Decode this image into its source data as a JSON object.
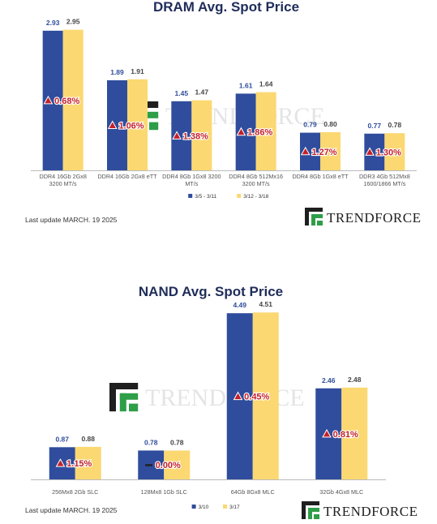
{
  "colors": {
    "series_a": "#2f4d9c",
    "series_b": "#fbd871",
    "title": "#1f2d5a",
    "increase": "#c4202a"
  },
  "watermark": "TRENDFORCE",
  "brand": {
    "logo": "TRENDFORCE"
  },
  "chart_data": [
    {
      "type": "bar",
      "title": "DRAM Avg. Spot Price",
      "categories": [
        [
          "DDR4 16Gb 2Gx8",
          "3200 MT/s"
        ],
        [
          "DDR4 16Gb 2Gx8 eTT"
        ],
        [
          "DDR4 8Gb 1Gx8 3200",
          "MT/s"
        ],
        [
          "DDR4 8Gb 512Mx16",
          "3200 MT/s"
        ],
        [
          "DDR4 8Gb 1Gx8 eTT"
        ],
        [
          "DDR3 4Gb 512Mx8",
          "1600/1866 MT/s"
        ]
      ],
      "series": [
        {
          "name": "3/5 - 3/11",
          "values": [
            2.93,
            1.89,
            1.45,
            1.61,
            0.79,
            0.77
          ]
        },
        {
          "name": "3/12 - 3/18",
          "values": [
            2.95,
            1.91,
            1.47,
            1.64,
            0.8,
            0.78
          ]
        }
      ],
      "value_labels": [
        [
          "2.93",
          "1.89",
          "1.45",
          "1.61",
          "0.79",
          "0.77"
        ],
        [
          "2.95",
          "1.91",
          "1.47",
          "1.64",
          "0.80",
          "0.78"
        ]
      ],
      "changes": [
        {
          "direction": "up",
          "text": "0.68%"
        },
        {
          "direction": "up",
          "text": "1.06%"
        },
        {
          "direction": "up",
          "text": "1.38%"
        },
        {
          "direction": "up",
          "text": "1.86%"
        },
        {
          "direction": "up",
          "text": "1.27%"
        },
        {
          "direction": "up",
          "text": "1.30%"
        }
      ],
      "ylim": [
        0,
        3.2
      ],
      "legend_position": "bottom-center",
      "last_update": "Last update MARCH. 19  2025"
    },
    {
      "type": "bar",
      "title": "NAND Avg. Spot Price",
      "categories": [
        [
          "256Mx8 2Gb SLC"
        ],
        [
          "128Mx8 1Gb SLC"
        ],
        [
          "64Gb 8Gx8 MLC"
        ],
        [
          "32Gb 4Gx8 MLC"
        ]
      ],
      "series": [
        {
          "name": "3/10",
          "values": [
            0.87,
            0.78,
            4.49,
            2.46
          ]
        },
        {
          "name": "3/17",
          "values": [
            0.88,
            0.78,
            4.51,
            2.48
          ]
        }
      ],
      "value_labels": [
        [
          "0.87",
          "0.78",
          "4.49",
          "2.46"
        ],
        [
          "0.88",
          "0.78",
          "4.51",
          "2.48"
        ]
      ],
      "changes": [
        {
          "direction": "up",
          "text": "1.15%"
        },
        {
          "direction": "flat",
          "text": "0.00%"
        },
        {
          "direction": "up",
          "text": "0.45%"
        },
        {
          "direction": "up",
          "text": "0.81%"
        }
      ],
      "ylim": [
        0,
        4.8
      ],
      "legend_position": "bottom-center",
      "last_update": "Last update MARCH. 19  2025"
    }
  ]
}
